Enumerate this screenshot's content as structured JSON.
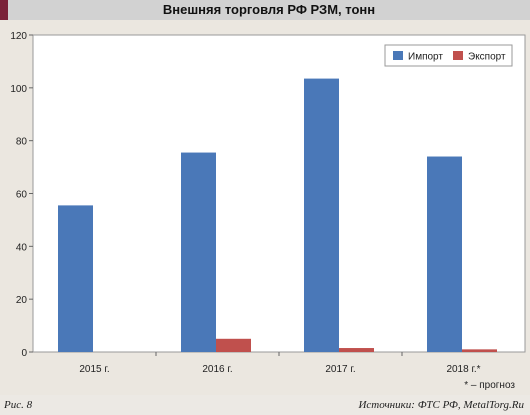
{
  "header": {
    "title": "Внешняя торговля РФ РЗМ, тонн"
  },
  "footer": {
    "figure_label": "Рис. 8",
    "source": "Источники: ФТС РФ, MetalTorg.Ru"
  },
  "note": "* – прогноз",
  "colors": {
    "import": "#4a78b8",
    "export": "#c0504d",
    "header_accent": "#7a2138"
  },
  "chart_data": {
    "type": "bar",
    "title": "Внешняя торговля РФ РЗМ, тонн",
    "categories": [
      "2015 г.",
      "2016 г.",
      "2017 г.",
      "2018 г.*"
    ],
    "series": [
      {
        "name": "Импорт",
        "values": [
          55.5,
          75.5,
          103.5,
          74
        ]
      },
      {
        "name": "Экспорт",
        "values": [
          0,
          5,
          1.5,
          1
        ]
      }
    ],
    "ylim": [
      0,
      120
    ],
    "yticks": [
      0,
      20,
      40,
      60,
      80,
      100,
      120
    ],
    "grid": false,
    "legend": "top-right",
    "xlabel": "",
    "ylabel": ""
  }
}
